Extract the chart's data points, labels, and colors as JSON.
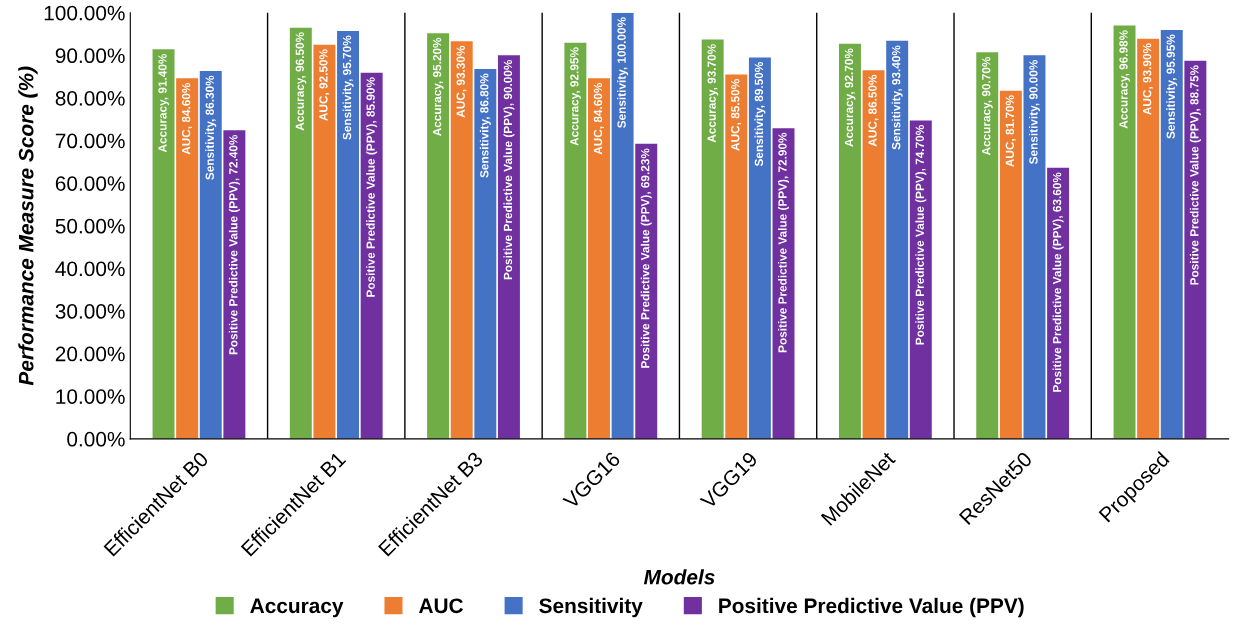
{
  "chart_data": {
    "type": "bar",
    "xlabel": "Models",
    "ylabel": "Performance Measure Score (%)",
    "categories": [
      "EfficientNet B0",
      "EfficientNet B1",
      "EfficientNet B3",
      "VGG16",
      "VGG19",
      "MobileNet",
      "ResNet50",
      "Proposed"
    ],
    "series": [
      {
        "name": "Accuracy",
        "color": "#70ad47",
        "values": [
          91.4,
          96.5,
          95.2,
          92.95,
          93.7,
          92.7,
          90.7,
          96.98
        ],
        "value_labels": [
          "Accuracy, 91.40%",
          "Accuracy, 96.50%",
          "Accuracy, 95.20%",
          "Accuracy, 92.95%",
          "Accuracy, 93.70%",
          "Accuracy, 92.70%",
          "Accuracy, 90.70%",
          "Accuracy, 96.98%"
        ]
      },
      {
        "name": "AUC",
        "color": "#ed7d31",
        "values": [
          84.6,
          92.5,
          93.3,
          84.6,
          85.5,
          86.5,
          81.7,
          93.9
        ],
        "value_labels": [
          "AUC, 84.60%",
          "AUC, 92.50%",
          "AUC, 93.30%",
          "AUC, 84.60%",
          "AUC, 85.50%",
          "AUC, 86.50%",
          "AUC, 81.70%",
          "AUC, 93.90%"
        ]
      },
      {
        "name": "Sensitivity",
        "color": "#4472c4",
        "values": [
          86.3,
          95.7,
          86.8,
          100.0,
          89.5,
          93.4,
          90.0,
          95.95
        ],
        "value_labels": [
          "Sensitivity, 86.30%",
          "Sensitivity, 95.70%",
          "Sensitivity, 86.80%",
          "Sensitivity, 100.00%",
          "Sensitivity, 89.50%",
          "Sensitivity, 93.40%",
          "Sensitivity, 90.00%",
          "Sensitivity, 95.95%"
        ]
      },
      {
        "name": "Positive Predictive Value (PPV)",
        "color": "#7030a0",
        "values": [
          72.4,
          85.9,
          90.0,
          69.23,
          72.9,
          74.7,
          63.6,
          88.75
        ],
        "value_labels": [
          "Positive Predictive Value (PPV), 72.40%",
          "Positive Predictive Value (PPV), 85.90%",
          "Positive Predictive Value (PPV), 90.00%",
          "Positive Predictive Value (PPV), 69.23%",
          "Positive Predictive Value (PPV), 72.90%",
          "Positive Predictive Value (PPV), 74.70%",
          "Positive Predictive Value (PPV), 63.60%",
          "Positive Predictive Value (PPV), 88.75%"
        ]
      }
    ],
    "ylim": [
      0,
      100
    ],
    "yticks": [
      {
        "value": 0,
        "label": "0.00%"
      },
      {
        "value": 10,
        "label": "10.00%"
      },
      {
        "value": 20,
        "label": "20.00%"
      },
      {
        "value": 30,
        "label": "30.00%"
      },
      {
        "value": 40,
        "label": "40.00%"
      },
      {
        "value": 50,
        "label": "50.00%"
      },
      {
        "value": 60,
        "label": "60.00%"
      },
      {
        "value": 70,
        "label": "70.00%"
      },
      {
        "value": 80,
        "label": "80.00%"
      },
      {
        "value": 90,
        "label": "90.00%"
      },
      {
        "value": 100,
        "label": "100.00%"
      }
    ],
    "legend": "bottom"
  }
}
